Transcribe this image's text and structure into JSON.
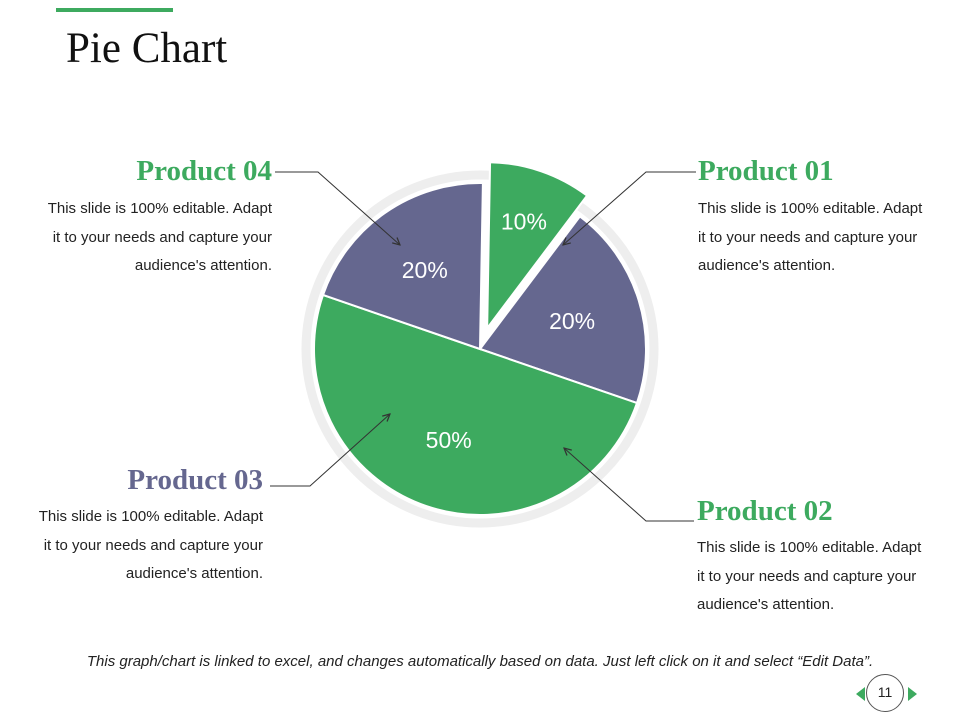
{
  "title": "Pie Chart",
  "colors": {
    "green": "#3daa5f",
    "slate": "#65678f",
    "ring": "#eeeeee"
  },
  "products": [
    {
      "title": "Product 01",
      "lines": [
        "This slide is 100% editable. Adapt",
        "it to your needs and capture your",
        "audience's attention."
      ]
    },
    {
      "title": "Product 02",
      "lines": [
        "This slide is 100% editable. Adapt",
        "it to your needs and capture your",
        "audience's attention."
      ]
    },
    {
      "title": "Product 03",
      "lines": [
        "This slide is 100% editable. Adapt",
        "it to your needs and capture your",
        "audience's attention."
      ]
    },
    {
      "title": "Product 04",
      "lines": [
        "This slide is 100% editable. Adapt",
        "it to your needs and capture your",
        "audience's attention."
      ]
    }
  ],
  "chart_data": {
    "type": "pie",
    "title": "",
    "start_angle_deg": 37,
    "exploded_slice_index": 3,
    "slices": [
      {
        "product": "Product 01",
        "value": 20,
        "label": "20%",
        "color": "#65678f"
      },
      {
        "product": "Product 02",
        "value": 50,
        "label": "50%",
        "color": "#3daa5f"
      },
      {
        "product": "Product 03",
        "value": 20,
        "label": "20%",
        "color": "#65678f"
      },
      {
        "product": "Product 04",
        "value": 10,
        "label": "10%",
        "color": "#3daa5f"
      }
    ]
  },
  "footer": "This graph/chart is linked to excel, and changes automatically based on data. Just left click on it and select “Edit Data”.",
  "page_number": "11"
}
